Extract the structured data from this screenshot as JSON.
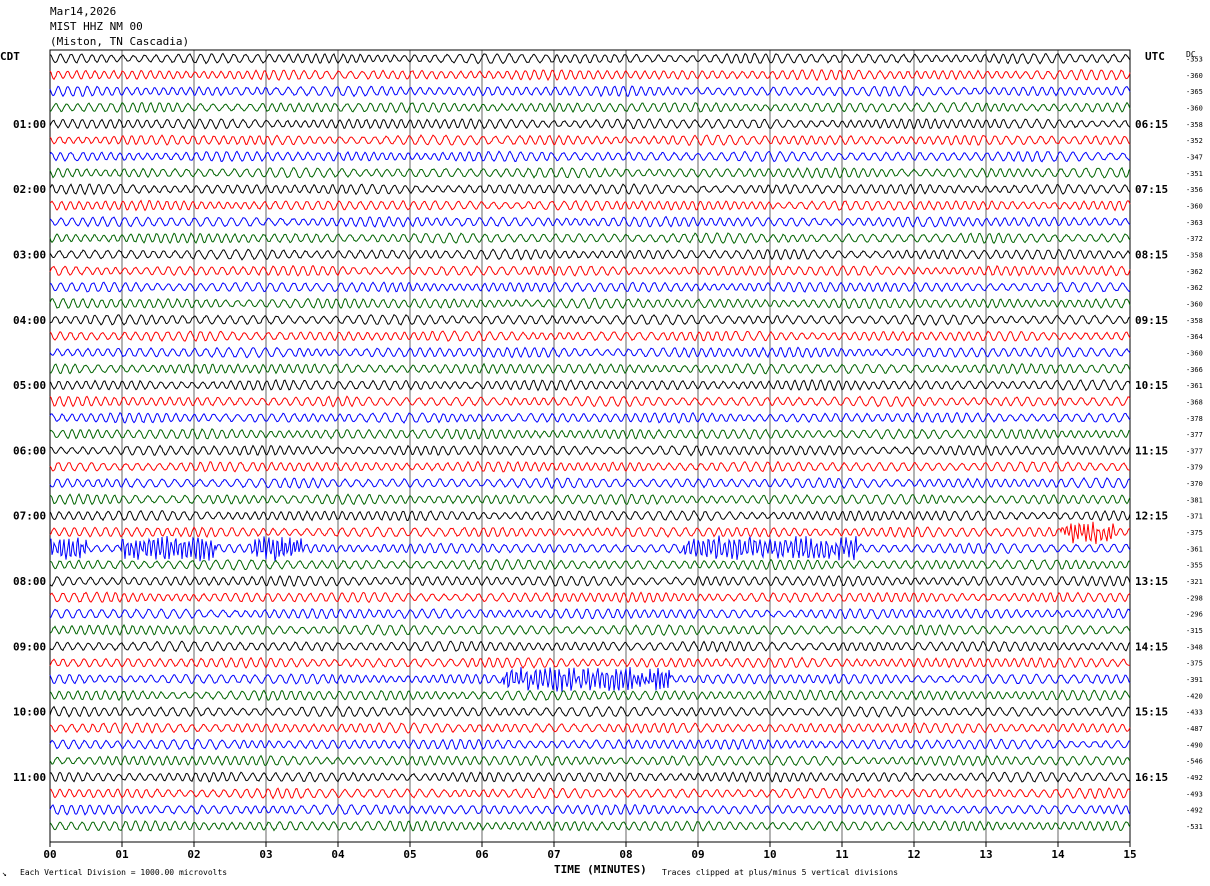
{
  "header": {
    "date": "Mar14,2026",
    "station": "MIST HHZ NM 00",
    "location": "(Miston, TN Cascadia)"
  },
  "left_zone_label": "CDT",
  "right_zone_label": "UTC",
  "dc_label": "DC",
  "footer": {
    "scale_note": "Each Vertical Division = 1000.00 microvolts",
    "xlabel": "TIME (MINUTES)",
    "clip_note": "Traces clipped at plus/minus 5 vertical divisions"
  },
  "chart_data": {
    "type": "line",
    "title": "MIST HHZ NM 00",
    "xlabel": "TIME (MINUTES)",
    "xlim": [
      0,
      15
    ],
    "x_ticks": [
      "00",
      "01",
      "02",
      "03",
      "04",
      "05",
      "06",
      "07",
      "08",
      "09",
      "10",
      "11",
      "12",
      "13",
      "14",
      "15"
    ],
    "grid": true,
    "trace_colors": [
      "#000000",
      "#ff0000",
      "#0000ff",
      "#006400"
    ],
    "left_time_labels": [
      "01:00",
      "02:00",
      "03:00",
      "04:00",
      "05:00",
      "06:00",
      "07:00",
      "08:00",
      "09:00",
      "10:00",
      "11:00"
    ],
    "right_time_labels": [
      "06:15",
      "07:15",
      "08:15",
      "09:15",
      "10:15",
      "11:15",
      "12:15",
      "13:15",
      "14:15",
      "15:15",
      "16:15"
    ],
    "dc_offsets": [
      "-353",
      "-360",
      "-365",
      "-360",
      "-358",
      "-352",
      "-347",
      "-351",
      "-356",
      "-360",
      "-363",
      "-372",
      "-358",
      "-362",
      "-362",
      "-360",
      "-358",
      "-364",
      "-360",
      "-366",
      "-361",
      "-368",
      "-378",
      "-377",
      "-377",
      "-379",
      "-370",
      "-381",
      "-371",
      "-375",
      "-361",
      "-355",
      "-321",
      "-298",
      "-296",
      "-315",
      "-348",
      "-375",
      "-391",
      "-420",
      "-433",
      "-487",
      "-490",
      "-546",
      "-492",
      "-493",
      "-492",
      "-531"
    ],
    "events": [
      {
        "trace": 29,
        "start_min": 14.05,
        "end_min": 14.8
      },
      {
        "trace": 30,
        "start_min": 0.0,
        "end_min": 0.5
      },
      {
        "trace": 30,
        "start_min": 1.0,
        "end_min": 2.3
      },
      {
        "trace": 30,
        "start_min": 2.8,
        "end_min": 3.5
      },
      {
        "trace": 30,
        "start_min": 8.8,
        "end_min": 11.2
      },
      {
        "trace": 38,
        "start_min": 6.3,
        "end_min": 8.6
      }
    ]
  }
}
